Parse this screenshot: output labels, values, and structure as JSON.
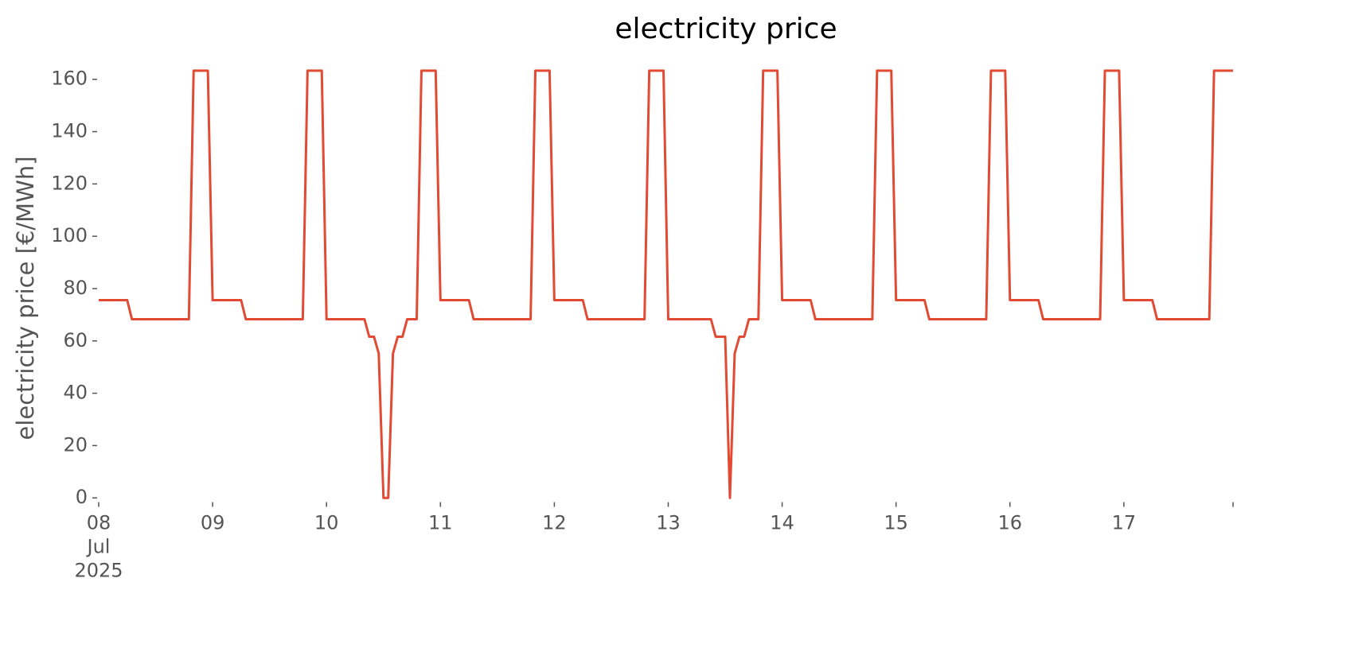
{
  "chart_data": {
    "type": "line",
    "title": "electricity price",
    "y_label": "electricity price [€/MWh]",
    "color": "#e24a33",
    "ylim": [
      -1,
      166
    ],
    "yticks": [
      0,
      20,
      40,
      60,
      80,
      100,
      120,
      140,
      160
    ],
    "xlim": [
      "2025-07-08 00:00",
      "2025-07-17 23:00"
    ],
    "xticks": [
      {
        "value": "2025-07-08 00:00",
        "label": "08\nJul\n2025"
      },
      {
        "value": "2025-07-09 00:00",
        "label": "09"
      },
      {
        "value": "2025-07-10 00:00",
        "label": "10"
      },
      {
        "value": "2025-07-11 00:00",
        "label": "11"
      },
      {
        "value": "2025-07-12 00:00",
        "label": "12"
      },
      {
        "value": "2025-07-13 00:00",
        "label": "13"
      },
      {
        "value": "2025-07-14 00:00",
        "label": "14"
      },
      {
        "value": "2025-07-15 00:00",
        "label": "15"
      },
      {
        "value": "2025-07-16 00:00",
        "label": "16"
      },
      {
        "value": "2025-07-17 00:00",
        "label": "17"
      },
      {
        "value": "2025-07-17 23:00",
        "label": null
      }
    ],
    "x": [
      "2025-07-08 00:00",
      "2025-07-08 01:00",
      "2025-07-08 02:00",
      "2025-07-08 03:00",
      "2025-07-08 04:00",
      "2025-07-08 05:00",
      "2025-07-08 06:00",
      "2025-07-08 07:00",
      "2025-07-08 08:00",
      "2025-07-08 09:00",
      "2025-07-08 10:00",
      "2025-07-08 11:00",
      "2025-07-08 12:00",
      "2025-07-08 13:00",
      "2025-07-08 14:00",
      "2025-07-08 15:00",
      "2025-07-08 16:00",
      "2025-07-08 17:00",
      "2025-07-08 18:00",
      "2025-07-08 19:00",
      "2025-07-08 20:00",
      "2025-07-08 21:00",
      "2025-07-08 22:00",
      "2025-07-08 23:00",
      "2025-07-09 00:00",
      "2025-07-09 01:00",
      "2025-07-09 02:00",
      "2025-07-09 03:00",
      "2025-07-09 04:00",
      "2025-07-09 05:00",
      "2025-07-09 06:00",
      "2025-07-09 07:00",
      "2025-07-09 08:00",
      "2025-07-09 09:00",
      "2025-07-09 10:00",
      "2025-07-09 11:00",
      "2025-07-09 12:00",
      "2025-07-09 13:00",
      "2025-07-09 14:00",
      "2025-07-09 15:00",
      "2025-07-09 16:00",
      "2025-07-09 17:00",
      "2025-07-09 18:00",
      "2025-07-09 19:00",
      "2025-07-09 20:00",
      "2025-07-09 21:00",
      "2025-07-09 22:00",
      "2025-07-09 23:00",
      "2025-07-10 00:00",
      "2025-07-10 01:00",
      "2025-07-10 02:00",
      "2025-07-10 03:00",
      "2025-07-10 04:00",
      "2025-07-10 05:00",
      "2025-07-10 06:00",
      "2025-07-10 07:00",
      "2025-07-10 08:00",
      "2025-07-10 09:00",
      "2025-07-10 10:00",
      "2025-07-10 11:00",
      "2025-07-10 12:00",
      "2025-07-10 13:00",
      "2025-07-10 14:00",
      "2025-07-10 15:00",
      "2025-07-10 16:00",
      "2025-07-10 17:00",
      "2025-07-10 18:00",
      "2025-07-10 19:00",
      "2025-07-10 20:00",
      "2025-07-10 21:00",
      "2025-07-10 22:00",
      "2025-07-10 23:00",
      "2025-07-11 00:00",
      "2025-07-11 01:00",
      "2025-07-11 02:00",
      "2025-07-11 03:00",
      "2025-07-11 04:00",
      "2025-07-11 05:00",
      "2025-07-11 06:00",
      "2025-07-11 07:00",
      "2025-07-11 08:00",
      "2025-07-11 09:00",
      "2025-07-11 10:00",
      "2025-07-11 11:00",
      "2025-07-11 12:00",
      "2025-07-11 13:00",
      "2025-07-11 14:00",
      "2025-07-11 15:00",
      "2025-07-11 16:00",
      "2025-07-11 17:00",
      "2025-07-11 18:00",
      "2025-07-11 19:00",
      "2025-07-11 20:00",
      "2025-07-11 21:00",
      "2025-07-11 22:00",
      "2025-07-11 23:00",
      "2025-07-12 00:00",
      "2025-07-12 01:00",
      "2025-07-12 02:00",
      "2025-07-12 03:00",
      "2025-07-12 04:00",
      "2025-07-12 05:00",
      "2025-07-12 06:00",
      "2025-07-12 07:00",
      "2025-07-12 08:00",
      "2025-07-12 09:00",
      "2025-07-12 10:00",
      "2025-07-12 11:00",
      "2025-07-12 12:00",
      "2025-07-12 13:00",
      "2025-07-12 14:00",
      "2025-07-12 15:00",
      "2025-07-12 16:00",
      "2025-07-12 17:00",
      "2025-07-12 18:00",
      "2025-07-12 19:00",
      "2025-07-12 20:00",
      "2025-07-12 21:00",
      "2025-07-12 22:00",
      "2025-07-12 23:00",
      "2025-07-13 00:00",
      "2025-07-13 01:00",
      "2025-07-13 02:00",
      "2025-07-13 03:00",
      "2025-07-13 04:00",
      "2025-07-13 05:00",
      "2025-07-13 06:00",
      "2025-07-13 07:00",
      "2025-07-13 08:00",
      "2025-07-13 09:00",
      "2025-07-13 10:00",
      "2025-07-13 11:00",
      "2025-07-13 12:00",
      "2025-07-13 13:00",
      "2025-07-13 14:00",
      "2025-07-13 15:00",
      "2025-07-13 16:00",
      "2025-07-13 17:00",
      "2025-07-13 18:00",
      "2025-07-13 19:00",
      "2025-07-13 20:00",
      "2025-07-13 21:00",
      "2025-07-13 22:00",
      "2025-07-13 23:00",
      "2025-07-14 00:00",
      "2025-07-14 01:00",
      "2025-07-14 02:00",
      "2025-07-14 03:00",
      "2025-07-14 04:00",
      "2025-07-14 05:00",
      "2025-07-14 06:00",
      "2025-07-14 07:00",
      "2025-07-14 08:00",
      "2025-07-14 09:00",
      "2025-07-14 10:00",
      "2025-07-14 11:00",
      "2025-07-14 12:00",
      "2025-07-14 13:00",
      "2025-07-14 14:00",
      "2025-07-14 15:00",
      "2025-07-14 16:00",
      "2025-07-14 17:00",
      "2025-07-14 18:00",
      "2025-07-14 19:00",
      "2025-07-14 20:00",
      "2025-07-14 21:00",
      "2025-07-14 22:00",
      "2025-07-14 23:00",
      "2025-07-15 00:00",
      "2025-07-15 01:00",
      "2025-07-15 02:00",
      "2025-07-15 03:00",
      "2025-07-15 04:00",
      "2025-07-15 05:00",
      "2025-07-15 06:00",
      "2025-07-15 07:00",
      "2025-07-15 08:00",
      "2025-07-15 09:00",
      "2025-07-15 10:00",
      "2025-07-15 11:00",
      "2025-07-15 12:00",
      "2025-07-15 13:00",
      "2025-07-15 14:00",
      "2025-07-15 15:00",
      "2025-07-15 16:00",
      "2025-07-15 17:00",
      "2025-07-15 18:00",
      "2025-07-15 19:00",
      "2025-07-15 20:00",
      "2025-07-15 21:00",
      "2025-07-15 22:00",
      "2025-07-15 23:00",
      "2025-07-16 00:00",
      "2025-07-16 01:00",
      "2025-07-16 02:00",
      "2025-07-16 03:00",
      "2025-07-16 04:00",
      "2025-07-16 05:00",
      "2025-07-16 06:00",
      "2025-07-16 07:00",
      "2025-07-16 08:00",
      "2025-07-16 09:00",
      "2025-07-16 10:00",
      "2025-07-16 11:00",
      "2025-07-16 12:00",
      "2025-07-16 13:00",
      "2025-07-16 14:00",
      "2025-07-16 15:00",
      "2025-07-16 16:00",
      "2025-07-16 17:00",
      "2025-07-16 18:00",
      "2025-07-16 19:00",
      "2025-07-16 20:00",
      "2025-07-16 21:00",
      "2025-07-16 22:00",
      "2025-07-16 23:00",
      "2025-07-17 00:00",
      "2025-07-17 01:00",
      "2025-07-17 02:00",
      "2025-07-17 03:00",
      "2025-07-17 04:00",
      "2025-07-17 05:00",
      "2025-07-17 06:00",
      "2025-07-17 07:00",
      "2025-07-17 08:00",
      "2025-07-17 09:00",
      "2025-07-17 10:00",
      "2025-07-17 11:00",
      "2025-07-17 12:00",
      "2025-07-17 13:00",
      "2025-07-17 14:00",
      "2025-07-17 15:00",
      "2025-07-17 16:00",
      "2025-07-17 17:00",
      "2025-07-17 18:00",
      "2025-07-17 19:00",
      "2025-07-17 20:00",
      "2025-07-17 21:00",
      "2025-07-17 22:00",
      "2025-07-17 23:00"
    ],
    "values": [
      75.6,
      75.6,
      75.6,
      75.6,
      75.6,
      75.6,
      75.6,
      68.3,
      68.3,
      68.3,
      68.3,
      68.3,
      68.3,
      68.3,
      68.3,
      68.3,
      68.3,
      68.3,
      68.3,
      68.3,
      163.3,
      163.3,
      163.3,
      163.3,
      75.6,
      75.6,
      75.6,
      75.6,
      75.6,
      75.6,
      75.6,
      68.3,
      68.3,
      68.3,
      68.3,
      68.3,
      68.3,
      68.3,
      68.3,
      68.3,
      68.3,
      68.3,
      68.3,
      68.3,
      163.3,
      163.3,
      163.3,
      163.3,
      68.3,
      68.3,
      68.3,
      68.3,
      68.3,
      68.3,
      68.3,
      68.3,
      68.3,
      61.6,
      61.6,
      55.2,
      0,
      0,
      55.2,
      61.6,
      61.6,
      68.3,
      68.3,
      68.3,
      163.3,
      163.3,
      163.3,
      163.3,
      75.6,
      75.6,
      75.6,
      75.6,
      75.6,
      75.6,
      75.6,
      68.3,
      68.3,
      68.3,
      68.3,
      68.3,
      68.3,
      68.3,
      68.3,
      68.3,
      68.3,
      68.3,
      68.3,
      68.3,
      163.3,
      163.3,
      163.3,
      163.3,
      75.6,
      75.6,
      75.6,
      75.6,
      75.6,
      75.6,
      75.6,
      68.3,
      68.3,
      68.3,
      68.3,
      68.3,
      68.3,
      68.3,
      68.3,
      68.3,
      68.3,
      68.3,
      68.3,
      68.3,
      163.3,
      163.3,
      163.3,
      163.3,
      68.3,
      68.3,
      68.3,
      68.3,
      68.3,
      68.3,
      68.3,
      68.3,
      68.3,
      68.3,
      61.6,
      61.6,
      61.6,
      0,
      55.2,
      61.6,
      61.6,
      68.3,
      68.3,
      68.3,
      163.3,
      163.3,
      163.3,
      163.3,
      75.6,
      75.6,
      75.6,
      75.6,
      75.6,
      75.6,
      75.6,
      68.3,
      68.3,
      68.3,
      68.3,
      68.3,
      68.3,
      68.3,
      68.3,
      68.3,
      68.3,
      68.3,
      68.3,
      68.3,
      163.3,
      163.3,
      163.3,
      163.3,
      75.6,
      75.6,
      75.6,
      75.6,
      75.6,
      75.6,
      75.6,
      68.3,
      68.3,
      68.3,
      68.3,
      68.3,
      68.3,
      68.3,
      68.3,
      68.3,
      68.3,
      68.3,
      68.3,
      68.3,
      163.3,
      163.3,
      163.3,
      163.3,
      75.6,
      75.6,
      75.6,
      75.6,
      75.6,
      75.6,
      75.6,
      68.3,
      68.3,
      68.3,
      68.3,
      68.3,
      68.3,
      68.3,
      68.3,
      68.3,
      68.3,
      68.3,
      68.3,
      68.3,
      163.3,
      163.3,
      163.3,
      163.3,
      75.6,
      75.6,
      75.6,
      75.6,
      75.6,
      75.6,
      75.6,
      68.3,
      68.3,
      68.3,
      68.3,
      68.3,
      68.3,
      68.3,
      68.3,
      68.3,
      68.3,
      68.3,
      68.3,
      163.3,
      163.3,
      163.3,
      163.3,
      163.3
    ]
  }
}
